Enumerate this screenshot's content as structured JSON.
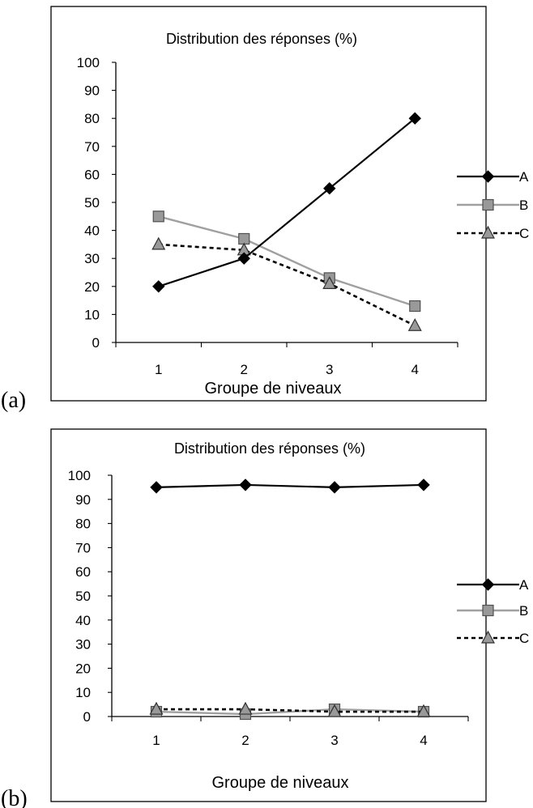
{
  "panels": [
    "(a)",
    "(b)"
  ],
  "colors": {
    "A": "#000000",
    "B": "#a0a0a0",
    "C": "#000000",
    "marker_fill": "#999999"
  },
  "chart_data": [
    {
      "type": "line",
      "panel": "(a)",
      "title": "Distribution des réponses (%)",
      "xlabel": "Groupe de niveaux",
      "ylabel": "",
      "categories": [
        "1",
        "2",
        "3",
        "4"
      ],
      "ylim": [
        0,
        100
      ],
      "yticks": [
        "0",
        "10",
        "20",
        "30",
        "40",
        "50",
        "60",
        "70",
        "80",
        "90",
        "100"
      ],
      "legend_position": "right",
      "grid": false,
      "series": [
        {
          "name": "A",
          "values": [
            20,
            30,
            55,
            80
          ],
          "marker": "diamond",
          "line": "solid-black"
        },
        {
          "name": "B",
          "values": [
            45,
            37,
            23,
            13
          ],
          "marker": "square",
          "line": "solid-gray"
        },
        {
          "name": "C",
          "values": [
            35,
            33,
            21,
            6
          ],
          "marker": "triangle",
          "line": "dotted-black"
        }
      ]
    },
    {
      "type": "line",
      "panel": "(b)",
      "title": "Distribution des réponses (%)",
      "xlabel": "Groupe de niveaux",
      "ylabel": "",
      "categories": [
        "1",
        "2",
        "3",
        "4"
      ],
      "ylim": [
        0,
        100
      ],
      "yticks": [
        "0",
        "10",
        "20",
        "30",
        "40",
        "50",
        "60",
        "70",
        "80",
        "90",
        "100"
      ],
      "legend_position": "right",
      "grid": false,
      "series": [
        {
          "name": "A",
          "values": [
            95,
            96,
            95,
            96
          ],
          "marker": "diamond",
          "line": "solid-black"
        },
        {
          "name": "B",
          "values": [
            2,
            1,
            3,
            2
          ],
          "marker": "square",
          "line": "solid-gray"
        },
        {
          "name": "C",
          "values": [
            3,
            3,
            2,
            2
          ],
          "marker": "triangle",
          "line": "dotted-black"
        }
      ]
    }
  ]
}
